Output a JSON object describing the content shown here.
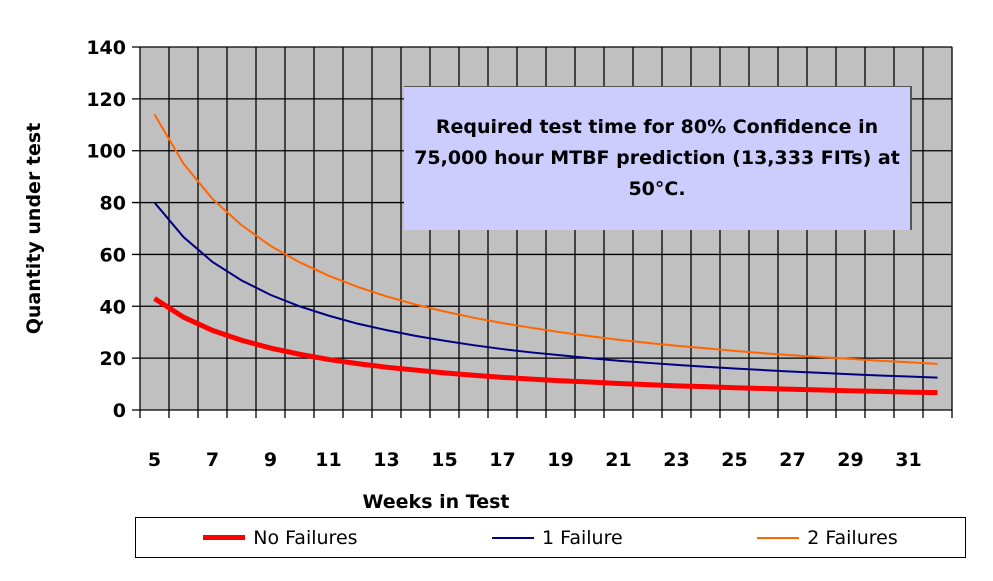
{
  "chart_data": {
    "type": "line",
    "title": "",
    "annotation": "Required test time for 80% Confidence in 75,000 hour MTBF prediction (13,333 FITs) at 50°C.",
    "xlabel": "Weeks in Test",
    "ylabel": "Quantity under test",
    "ylim": [
      0,
      140
    ],
    "yticks": [
      0,
      20,
      40,
      60,
      80,
      100,
      120,
      140
    ],
    "x": [
      5,
      6,
      7,
      8,
      9,
      10,
      11,
      12,
      13,
      14,
      15,
      16,
      17,
      18,
      19,
      20,
      21,
      22,
      23,
      24,
      25,
      26,
      27,
      28,
      29,
      30,
      31,
      32
    ],
    "xtick_labels": [
      "5",
      "7",
      "9",
      "11",
      "13",
      "15",
      "17",
      "19",
      "21",
      "23",
      "25",
      "27",
      "29",
      "31"
    ],
    "grid": true,
    "legend_position": "bottom",
    "series": [
      {
        "name": "No Failures",
        "color": "#ff0000",
        "values": [
          43,
          35.8,
          30.7,
          26.9,
          23.9,
          21.5,
          19.5,
          17.9,
          16.5,
          15.4,
          14.3,
          13.4,
          12.6,
          11.9,
          11.3,
          10.8,
          10.2,
          9.8,
          9.3,
          9,
          8.6,
          8.3,
          8,
          7.7,
          7.4,
          7.2,
          6.9,
          6.7
        ]
      },
      {
        "name": "1 Failure",
        "color": "#000080",
        "values": [
          80,
          66.7,
          57.1,
          50,
          44.4,
          40,
          36.4,
          33.3,
          30.8,
          28.6,
          26.7,
          25,
          23.5,
          22.2,
          21.1,
          20,
          19,
          18.2,
          17.4,
          16.7,
          16,
          15.4,
          14.8,
          14.3,
          13.8,
          13.3,
          12.9,
          12.5
        ]
      },
      {
        "name": "2 Failures",
        "color": "#ff6600",
        "values": [
          114,
          95,
          81.4,
          71.3,
          63.3,
          57,
          51.8,
          47.5,
          43.8,
          40.7,
          38,
          35.6,
          33.5,
          31.7,
          30,
          28.5,
          27.1,
          25.9,
          24.8,
          23.8,
          22.8,
          21.9,
          21.1,
          20.4,
          19.7,
          19,
          18.4,
          17.8
        ]
      }
    ]
  }
}
